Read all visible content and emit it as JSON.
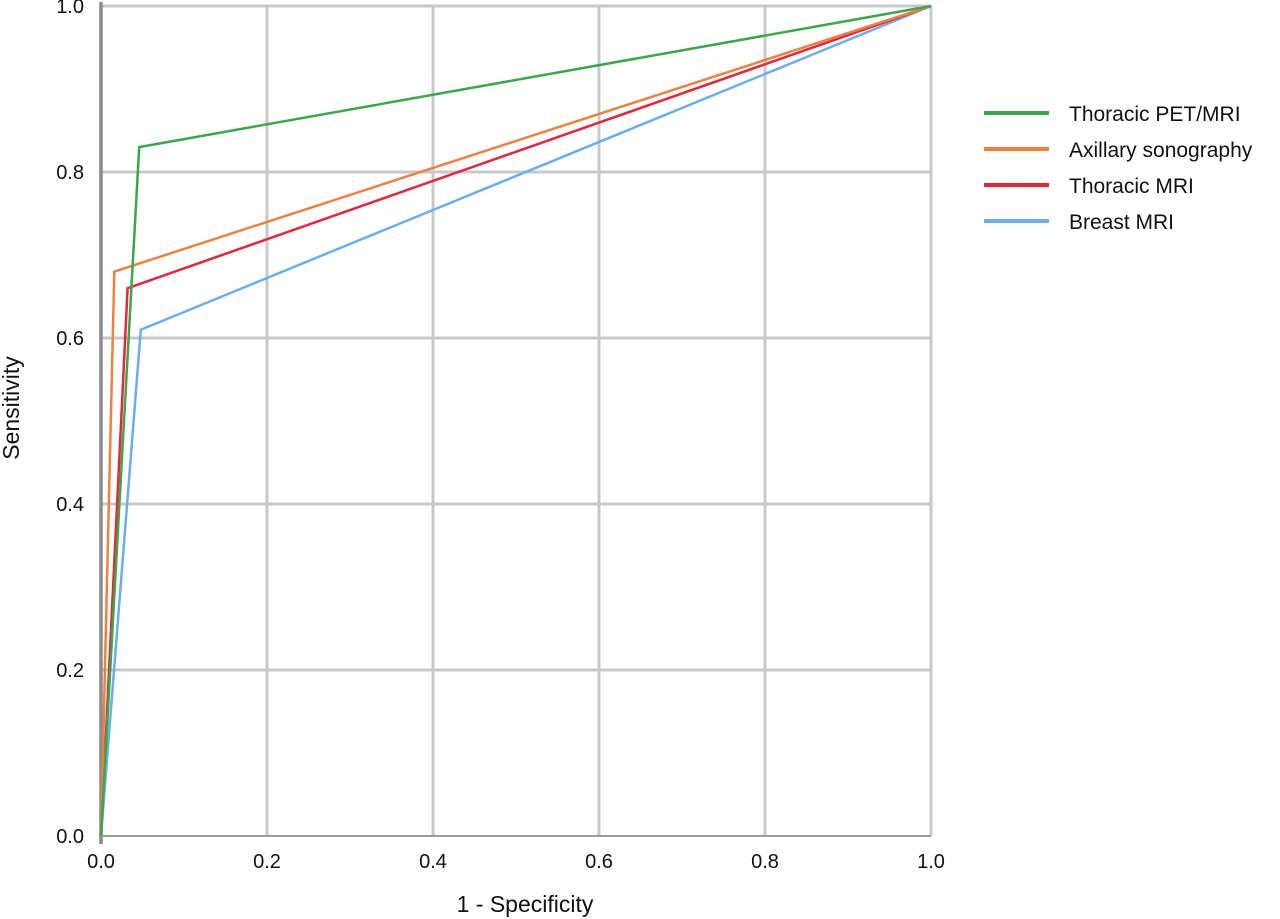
{
  "chart_data": {
    "type": "line",
    "xlabel": "1 - Specificity",
    "ylabel": "Sensitivity",
    "xlim": [
      0,
      1
    ],
    "ylim": [
      0,
      1
    ],
    "x_ticks": [
      "0.0",
      "0.2",
      "0.4",
      "0.6",
      "0.8",
      "1.0"
    ],
    "y_ticks": [
      "0.0",
      "0.2",
      "0.4",
      "0.6",
      "0.8",
      "1.0"
    ],
    "grid": true,
    "legend_position": "right",
    "series": [
      {
        "name": "Thoracic PET/MRI",
        "color": "#3aa84a",
        "points": [
          [
            0,
            0
          ],
          [
            0.046,
            0.83
          ],
          [
            1,
            1
          ]
        ]
      },
      {
        "name": "Axillary sonography",
        "color": "#f08040",
        "points": [
          [
            0,
            0
          ],
          [
            0.016,
            0.68
          ],
          [
            1,
            1
          ]
        ]
      },
      {
        "name": "Thoracic MRI",
        "color": "#e8243c",
        "points": [
          [
            0,
            0
          ],
          [
            0.032,
            0.66
          ],
          [
            1,
            1
          ]
        ]
      },
      {
        "name": "Breast MRI",
        "color": "#6aaef0",
        "points": [
          [
            0,
            0
          ],
          [
            0.048,
            0.61
          ],
          [
            1,
            1
          ]
        ]
      }
    ]
  }
}
